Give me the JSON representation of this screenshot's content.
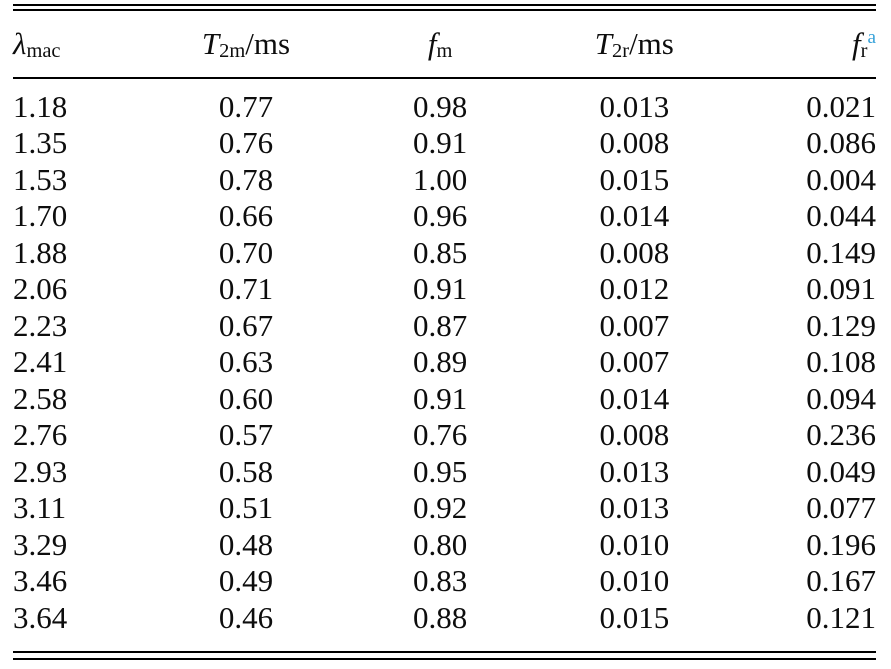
{
  "colors": {
    "text": "#0d0d0d",
    "rule": "#000000",
    "footnote_accent": "#36a1d9"
  },
  "table": {
    "headers": [
      {
        "base": "λ",
        "sub": "mac",
        "suffix": "",
        "sup": ""
      },
      {
        "base": "T",
        "sub": "2m",
        "suffix": "/ms",
        "sup": ""
      },
      {
        "base": "f",
        "sub": "m",
        "suffix": "",
        "sup": ""
      },
      {
        "base": "T",
        "sub": "2r",
        "suffix": "/ms",
        "sup": ""
      },
      {
        "base": "f",
        "sub": "r",
        "suffix": "",
        "sup": "a"
      }
    ],
    "rows": [
      [
        "1.18",
        "0.77",
        "0.98",
        "0.013",
        "0.021"
      ],
      [
        "1.35",
        "0.76",
        "0.91",
        "0.008",
        "0.086"
      ],
      [
        "1.53",
        "0.78",
        "1.00",
        "0.015",
        "0.004"
      ],
      [
        "1.70",
        "0.66",
        "0.96",
        "0.014",
        "0.044"
      ],
      [
        "1.88",
        "0.70",
        "0.85",
        "0.008",
        "0.149"
      ],
      [
        "2.06",
        "0.71",
        "0.91",
        "0.012",
        "0.091"
      ],
      [
        "2.23",
        "0.67",
        "0.87",
        "0.007",
        "0.129"
      ],
      [
        "2.41",
        "0.63",
        "0.89",
        "0.007",
        "0.108"
      ],
      [
        "2.58",
        "0.60",
        "0.91",
        "0.014",
        "0.094"
      ],
      [
        "2.76",
        "0.57",
        "0.76",
        "0.008",
        "0.236"
      ],
      [
        "2.93",
        "0.58",
        "0.95",
        "0.013",
        "0.049"
      ],
      [
        "3.11",
        "0.51",
        "0.92",
        "0.013",
        "0.077"
      ],
      [
        "3.29",
        "0.48",
        "0.80",
        "0.010",
        "0.196"
      ],
      [
        "3.46",
        "0.49",
        "0.83",
        "0.010",
        "0.167"
      ],
      [
        "3.64",
        "0.46",
        "0.88",
        "0.015",
        "0.121"
      ]
    ]
  }
}
